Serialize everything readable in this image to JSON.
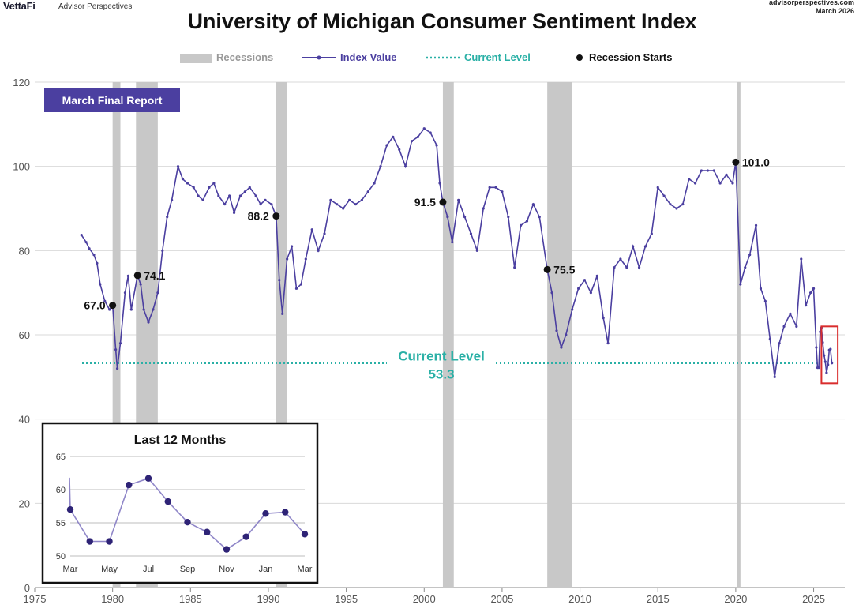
{
  "header": {
    "brand": "VettaFi",
    "brand_sub": "Advisor Perspectives",
    "site": "advisorperspectives.com",
    "date": "March 2026"
  },
  "badge": "March Final Report",
  "colors": {
    "index": "#4b3fa0",
    "current": "#2ab0a6",
    "recession": "#c8c8c8",
    "recession_legend": "#999999",
    "highlight_box": "#d92d2d"
  },
  "chart_data": [
    {
      "type": "line",
      "title": "University of Michigan Consumer Sentiment Index",
      "xlabel": "",
      "ylabel": "",
      "xlim": [
        1975,
        2027
      ],
      "ylim": [
        0,
        120
      ],
      "x_ticks": [
        "1975",
        "1980",
        "1985",
        "1990",
        "1995",
        "2000",
        "2005",
        "2010",
        "2015",
        "2020",
        "2025"
      ],
      "y_ticks": [
        "0",
        "20",
        "40",
        "60",
        "80",
        "100",
        "120"
      ],
      "grid": "horizontal",
      "legend": {
        "placement": "top",
        "recessions": "Recessions",
        "index": "Index Value",
        "current": "Current Level",
        "starts": "Recession Starts"
      },
      "recessions": [
        {
          "start": 1980.0,
          "end": 1980.5
        },
        {
          "start": 1981.5,
          "end": 1982.9
        },
        {
          "start": 1990.5,
          "end": 1991.2
        },
        {
          "start": 2001.2,
          "end": 2001.9
        },
        {
          "start": 2007.9,
          "end": 2009.5
        },
        {
          "start": 2020.1,
          "end": 2020.3
        }
      ],
      "recession_starts": [
        {
          "x": 1980.0,
          "y": 67.0,
          "label": "67.0"
        },
        {
          "x": 1981.6,
          "y": 74.1,
          "label": "74.1"
        },
        {
          "x": 1990.5,
          "y": 88.2,
          "label": "88.2"
        },
        {
          "x": 2001.2,
          "y": 91.5,
          "label": "91.5"
        },
        {
          "x": 2007.9,
          "y": 75.5,
          "label": "75.5"
        },
        {
          "x": 2020.0,
          "y": 101.0,
          "label": "101.0"
        }
      ],
      "current_level": {
        "value": 53.3,
        "label": "Current Level",
        "value_label": "53.3"
      },
      "series": [
        {
          "name": "Index Value",
          "points": [
            [
              1978.0,
              83.7
            ],
            [
              1978.3,
              82.0
            ],
            [
              1978.5,
              80.5
            ],
            [
              1978.8,
              79.0
            ],
            [
              1979.0,
              77.0
            ],
            [
              1979.2,
              72.0
            ],
            [
              1979.5,
              68.0
            ],
            [
              1979.8,
              66.0
            ],
            [
              1980.0,
              67.0
            ],
            [
              1980.2,
              56.5
            ],
            [
              1980.3,
              52.0
            ],
            [
              1980.5,
              58.0
            ],
            [
              1980.8,
              70.0
            ],
            [
              1981.0,
              74.0
            ],
            [
              1981.2,
              66.0
            ],
            [
              1981.6,
              74.1
            ],
            [
              1981.8,
              72.0
            ],
            [
              1982.0,
              66.0
            ],
            [
              1982.3,
              63.0
            ],
            [
              1982.6,
              66.0
            ],
            [
              1982.9,
              70.0
            ],
            [
              1983.2,
              80.0
            ],
            [
              1983.5,
              88.0
            ],
            [
              1983.8,
              92.0
            ],
            [
              1984.2,
              100.0
            ],
            [
              1984.5,
              97.0
            ],
            [
              1984.8,
              96.0
            ],
            [
              1985.2,
              95.0
            ],
            [
              1985.5,
              93.0
            ],
            [
              1985.8,
              92.0
            ],
            [
              1986.2,
              95.0
            ],
            [
              1986.5,
              96.0
            ],
            [
              1986.8,
              93.0
            ],
            [
              1987.2,
              91.0
            ],
            [
              1987.5,
              93.0
            ],
            [
              1987.8,
              89.0
            ],
            [
              1988.2,
              93.0
            ],
            [
              1988.5,
              94.0
            ],
            [
              1988.8,
              95.0
            ],
            [
              1989.2,
              93.0
            ],
            [
              1989.5,
              91.0
            ],
            [
              1989.8,
              92.0
            ],
            [
              1990.2,
              91.0
            ],
            [
              1990.5,
              88.2
            ],
            [
              1990.7,
              73.0
            ],
            [
              1990.9,
              65.0
            ],
            [
              1991.2,
              78.0
            ],
            [
              1991.5,
              81.0
            ],
            [
              1991.8,
              71.0
            ],
            [
              1992.1,
              72.0
            ],
            [
              1992.4,
              78.0
            ],
            [
              1992.8,
              85.0
            ],
            [
              1993.2,
              80.0
            ],
            [
              1993.6,
              84.0
            ],
            [
              1994.0,
              92.0
            ],
            [
              1994.4,
              91.0
            ],
            [
              1994.8,
              90.0
            ],
            [
              1995.2,
              92.0
            ],
            [
              1995.6,
              91.0
            ],
            [
              1996.0,
              92.0
            ],
            [
              1996.4,
              94.0
            ],
            [
              1996.8,
              96.0
            ],
            [
              1997.2,
              100.0
            ],
            [
              1997.6,
              105.0
            ],
            [
              1998.0,
              107.0
            ],
            [
              1998.4,
              104.0
            ],
            [
              1998.8,
              100.0
            ],
            [
              1999.2,
              106.0
            ],
            [
              1999.6,
              107.0
            ],
            [
              2000.0,
              109.0
            ],
            [
              2000.4,
              108.0
            ],
            [
              2000.8,
              105.0
            ],
            [
              2001.0,
              96.0
            ],
            [
              2001.2,
              91.5
            ],
            [
              2001.5,
              88.0
            ],
            [
              2001.8,
              82.0
            ],
            [
              2002.2,
              92.0
            ],
            [
              2002.6,
              88.0
            ],
            [
              2003.0,
              84.0
            ],
            [
              2003.4,
              80.0
            ],
            [
              2003.8,
              90.0
            ],
            [
              2004.2,
              95.0
            ],
            [
              2004.6,
              95.0
            ],
            [
              2005.0,
              94.0
            ],
            [
              2005.4,
              88.0
            ],
            [
              2005.8,
              76.0
            ],
            [
              2006.2,
              86.0
            ],
            [
              2006.6,
              87.0
            ],
            [
              2007.0,
              91.0
            ],
            [
              2007.4,
              88.0
            ],
            [
              2007.9,
              75.5
            ],
            [
              2008.2,
              70.0
            ],
            [
              2008.5,
              61.0
            ],
            [
              2008.8,
              57.0
            ],
            [
              2009.1,
              60.0
            ],
            [
              2009.5,
              66.0
            ],
            [
              2009.9,
              71.0
            ],
            [
              2010.3,
              73.0
            ],
            [
              2010.7,
              70.0
            ],
            [
              2011.1,
              74.0
            ],
            [
              2011.5,
              64.0
            ],
            [
              2011.8,
              58.0
            ],
            [
              2012.2,
              76.0
            ],
            [
              2012.6,
              78.0
            ],
            [
              2013.0,
              76.0
            ],
            [
              2013.4,
              81.0
            ],
            [
              2013.8,
              76.0
            ],
            [
              2014.2,
              81.0
            ],
            [
              2014.6,
              84.0
            ],
            [
              2015.0,
              95.0
            ],
            [
              2015.4,
              93.0
            ],
            [
              2015.8,
              91.0
            ],
            [
              2016.2,
              90.0
            ],
            [
              2016.6,
              91.0
            ],
            [
              2017.0,
              97.0
            ],
            [
              2017.4,
              96.0
            ],
            [
              2017.8,
              99.0
            ],
            [
              2018.2,
              99.0
            ],
            [
              2018.6,
              99.0
            ],
            [
              2019.0,
              96.0
            ],
            [
              2019.4,
              98.0
            ],
            [
              2019.8,
              96.0
            ],
            [
              2020.0,
              101.0
            ],
            [
              2020.3,
              72.0
            ],
            [
              2020.6,
              76.0
            ],
            [
              2020.9,
              79.0
            ],
            [
              2021.3,
              86.0
            ],
            [
              2021.6,
              71.0
            ],
            [
              2021.9,
              68.0
            ],
            [
              2022.2,
              59.0
            ],
            [
              2022.5,
              50.0
            ],
            [
              2022.8,
              58.0
            ],
            [
              2023.1,
              62.0
            ],
            [
              2023.5,
              65.0
            ],
            [
              2023.9,
              62.0
            ],
            [
              2024.2,
              78.0
            ],
            [
              2024.5,
              67.0
            ],
            [
              2024.8,
              70.0
            ],
            [
              2025.0,
              71.0
            ],
            [
              2025.17,
              57.0
            ],
            [
              2025.25,
              52.2
            ],
            [
              2025.33,
              52.2
            ],
            [
              2025.42,
              60.7
            ],
            [
              2025.5,
              61.7
            ],
            [
              2025.58,
              58.2
            ],
            [
              2025.67,
              55.1
            ],
            [
              2025.75,
              53.6
            ],
            [
              2025.83,
              51.0
            ],
            [
              2025.92,
              52.9
            ],
            [
              2026.0,
              56.4
            ],
            [
              2026.08,
              56.6
            ],
            [
              2026.17,
              53.3
            ]
          ]
        }
      ]
    },
    {
      "type": "line",
      "title": "Last 12 Months",
      "ylim": [
        50,
        65
      ],
      "y_ticks": [
        "50",
        "55",
        "60",
        "65"
      ],
      "categories": [
        "Mar",
        "Apr",
        "May",
        "Jun",
        "Jul",
        "Aug",
        "Sep",
        "Oct",
        "Nov",
        "Dec",
        "Jan",
        "Feb",
        "Mar"
      ],
      "x_tick_labels": [
        "Mar",
        "May",
        "Jul",
        "Sep",
        "Nov",
        "Jan",
        "Mar"
      ],
      "values": [
        57.0,
        52.2,
        52.2,
        60.7,
        61.7,
        58.2,
        55.1,
        53.6,
        51.0,
        52.9,
        56.4,
        56.6,
        53.3
      ]
    }
  ]
}
